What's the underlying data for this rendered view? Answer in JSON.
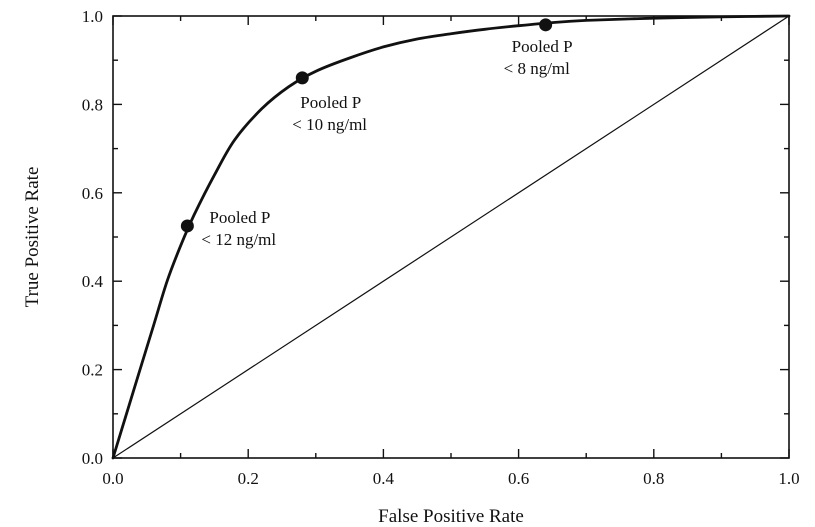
{
  "chart_data": {
    "type": "line",
    "title": "",
    "xlabel": "False Positive Rate",
    "ylabel": "True Positive Rate",
    "xlim": [
      0.0,
      1.0
    ],
    "ylim": [
      0.0,
      1.0
    ],
    "grid": false,
    "x_ticks": [
      0.0,
      0.2,
      0.4,
      0.6,
      0.8,
      1.0
    ],
    "y_ticks": [
      0.0,
      0.2,
      0.4,
      0.6,
      0.8,
      1.0
    ],
    "x_tick_labels": [
      "0.0",
      "0.2",
      "0.4",
      "0.6",
      "0.8",
      "1.0"
    ],
    "y_tick_labels": [
      "0.0",
      "0.2",
      "0.4",
      "0.6",
      "0.8",
      "1.0"
    ],
    "series": [
      {
        "values_xy": [
          [
            0.0,
            0.0
          ],
          [
            0.02,
            0.1
          ],
          [
            0.04,
            0.2
          ],
          [
            0.06,
            0.3
          ],
          [
            0.08,
            0.4
          ],
          [
            0.1,
            0.48
          ],
          [
            0.12,
            0.55
          ],
          [
            0.15,
            0.64
          ],
          [
            0.18,
            0.72
          ],
          [
            0.22,
            0.79
          ],
          [
            0.26,
            0.84
          ],
          [
            0.3,
            0.875
          ],
          [
            0.35,
            0.905
          ],
          [
            0.4,
            0.93
          ],
          [
            0.45,
            0.948
          ],
          [
            0.5,
            0.96
          ],
          [
            0.55,
            0.97
          ],
          [
            0.6,
            0.978
          ],
          [
            0.65,
            0.985
          ],
          [
            0.7,
            0.99
          ],
          [
            0.8,
            0.995
          ],
          [
            0.9,
            0.998
          ],
          [
            1.0,
            1.0
          ]
        ]
      },
      {
        "values_xy": [
          [
            0.0,
            0.0
          ],
          [
            1.0,
            1.0
          ]
        ]
      }
    ],
    "points": [
      {
        "x": 0.11,
        "y": 0.525,
        "label_line1": "Pooled P",
        "label_line2": "< 12 ng/ml"
      },
      {
        "x": 0.28,
        "y": 0.86,
        "label_line1": "Pooled P",
        "label_line2": "< 10 ng/ml"
      },
      {
        "x": 0.64,
        "y": 0.98,
        "label_line1": "Pooled P",
        "label_line2": "< 8 ng/ml"
      }
    ]
  }
}
